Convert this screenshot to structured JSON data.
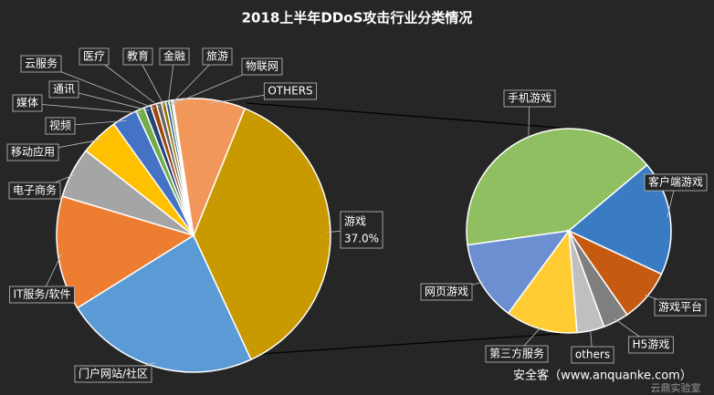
{
  "chart_data": [
    {
      "type": "pie",
      "title": "2018上半年DDoS攻击行业分类情况",
      "categories": [
        "游戏",
        "门户网站/社区",
        "IT服务/软件",
        "电子商务",
        "移动应用",
        "视频",
        "媒体",
        "通讯",
        "云服务",
        "医疗",
        "教育",
        "金融",
        "旅游",
        "物联网",
        "OTHERS"
      ],
      "values": [
        37.0,
        23,
        13.5,
        6,
        4.5,
        3,
        1.0,
        0.8,
        0.7,
        0.6,
        0.5,
        0.4,
        0.3,
        0.2,
        8.5
      ],
      "value_labels": [
        "37.0%",
        null,
        null,
        null,
        null,
        null,
        null,
        null,
        null,
        null,
        null,
        null,
        null,
        null,
        null
      ],
      "colors": [
        "#c89a00",
        "#5b9bd5",
        "#ed7d31",
        "#a5a5a5",
        "#ffc000",
        "#4472c4",
        "#70ad47",
        "#264478",
        "#9e480e",
        "#636363",
        "#997300",
        "#255e91",
        "#43682b",
        "#698ed0",
        "#f1975a"
      ]
    },
    {
      "type": "pie",
      "categories": [
        "手机游戏",
        "客户端游戏",
        "游戏平台",
        "H5游戏",
        "others",
        "第三方服务",
        "网页游戏"
      ],
      "values": [
        15.2,
        6.7,
        3.1,
        1.5,
        1.6,
        4.2,
        4.7
      ],
      "colors": [
        "#8fbf60",
        "#3a7cc4",
        "#c55a11",
        "#7f7f7f",
        "#bfbfbf",
        "#ffcc33",
        "#6b8fd0"
      ]
    }
  ],
  "footer": "安全客（www.anquanke.com）",
  "watermark": "云鼎实验室"
}
